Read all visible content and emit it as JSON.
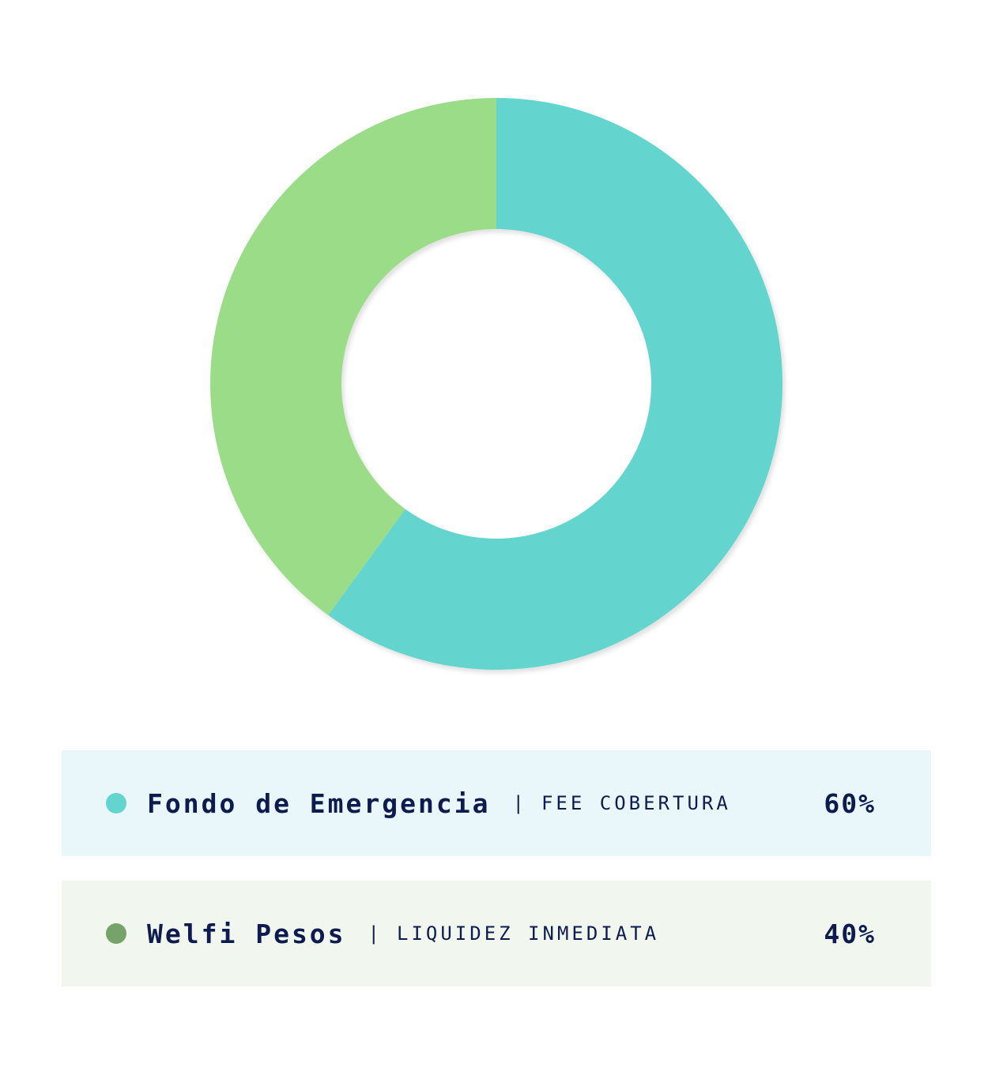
{
  "chart_data": {
    "type": "pie",
    "donut": true,
    "slices": [
      {
        "name": "Fondo de Emergencia",
        "description": "FEE COBERTURA",
        "value": 60,
        "label": "60%",
        "color": "#63d5ce"
      },
      {
        "name": "Welfi Pesos",
        "description": "LIQUIDEZ INMEDIATA",
        "value": 40,
        "label": "40%",
        "color": "#9bdc89"
      }
    ],
    "legend_placement": "bottom"
  },
  "legend": {
    "separator": "|",
    "rows": [
      {
        "name": "Fondo de Emergencia",
        "description": "FEE COBERTURA",
        "percent": "60%",
        "dot_color": "#63d5ce",
        "bg_color": "#eaf7fa"
      },
      {
        "name": "Welfi Pesos",
        "description": "LIQUIDEZ INMEDIATA",
        "percent": "40%",
        "dot_color": "#76a369",
        "bg_color": "#f1f7ef"
      }
    ]
  }
}
